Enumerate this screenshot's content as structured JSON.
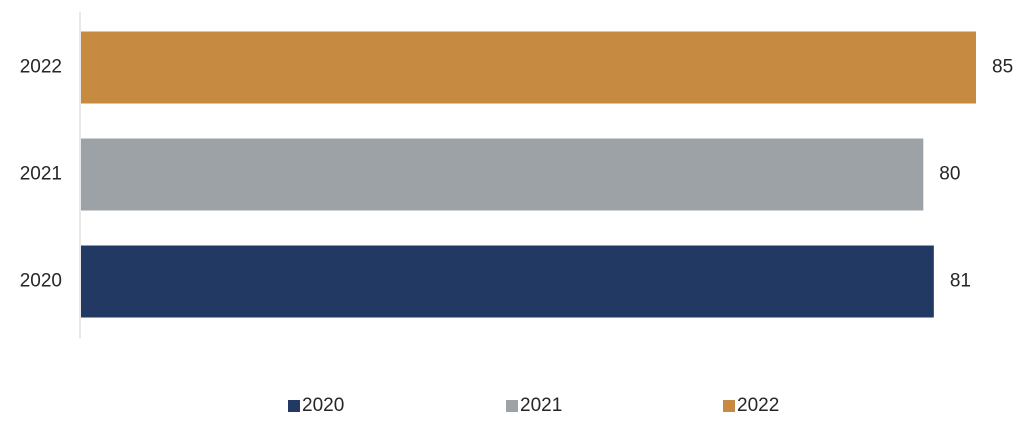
{
  "chart_data": {
    "type": "bar",
    "orientation": "horizontal",
    "title": "",
    "xlabel": "",
    "ylabel": "",
    "categories": [
      "2020",
      "2021",
      "2022"
    ],
    "values": [
      81,
      80,
      85
    ],
    "colors": [
      "#223964",
      "#9da2a6",
      "#c68a40"
    ],
    "xlim": [
      0,
      85
    ],
    "grid": false,
    "legend": {
      "position": "bottom",
      "entries": [
        "2020",
        "2021",
        "2022"
      ]
    }
  }
}
